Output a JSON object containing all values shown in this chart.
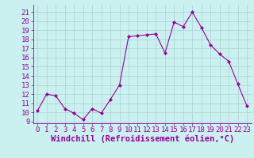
{
  "x": [
    0,
    1,
    2,
    3,
    4,
    5,
    6,
    7,
    8,
    9,
    10,
    11,
    12,
    13,
    14,
    15,
    16,
    17,
    18,
    19,
    20,
    21,
    22,
    23
  ],
  "y": [
    10.2,
    12.0,
    11.8,
    10.4,
    9.9,
    9.2,
    10.4,
    9.9,
    11.4,
    13.0,
    18.3,
    18.4,
    18.5,
    18.6,
    16.5,
    19.9,
    19.4,
    21.0,
    19.3,
    17.4,
    16.4,
    15.6,
    13.1,
    10.7
  ],
  "line_color": "#990099",
  "marker": "D",
  "marker_size": 2,
  "bg_color": "#caf0f0",
  "grid_color": "#b0d8d8",
  "xlabel": "Windchill (Refroidissement éolien,°C)",
  "ylabel_ticks": [
    9,
    10,
    11,
    12,
    13,
    14,
    15,
    16,
    17,
    18,
    19,
    20,
    21
  ],
  "ylim": [
    8.8,
    21.8
  ],
  "xlim": [
    -0.5,
    23.5
  ],
  "tick_fontsize": 6.5,
  "xlabel_fontsize": 7.5
}
